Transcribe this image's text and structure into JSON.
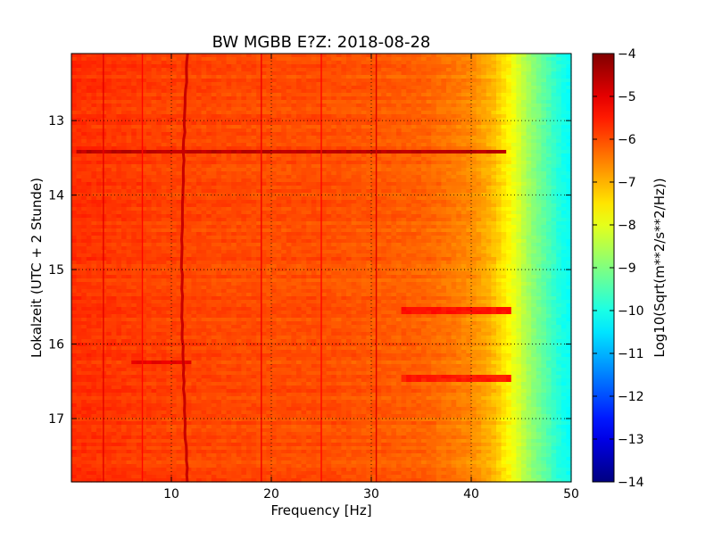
{
  "chart_data": {
    "type": "heatmap",
    "title": "BW MGBB E?Z: 2018-08-28",
    "xlabel": "Frequency [Hz]",
    "ylabel": "Lokalzeit (UTC + 2 Stunde)",
    "colorbar_label": "Log10(Sqrt(m**2/s**2/Hz))",
    "xlim": [
      0,
      50
    ],
    "ylim": [
      12.1,
      17.85
    ],
    "y_inverted": true,
    "clim": [
      -14,
      -4
    ],
    "colormap": "jet",
    "grid": true,
    "x_ticks": [
      10,
      20,
      30,
      40,
      50
    ],
    "x_tick_labels": [
      "10",
      "20",
      "30",
      "40",
      "50"
    ],
    "y_ticks": [
      13,
      14,
      15,
      16,
      17
    ],
    "y_tick_labels": [
      "13",
      "14",
      "15",
      "16",
      "17"
    ],
    "colorbar_ticks": [
      -4,
      -5,
      -6,
      -7,
      -8,
      -9,
      -10,
      -11,
      -12,
      -13,
      -14
    ],
    "colorbar_tick_labels": [
      "−4",
      "−5",
      "−6",
      "−7",
      "−8",
      "−9",
      "−10",
      "−11",
      "−12",
      "−13",
      "−14"
    ],
    "frequency_profile": {
      "frequency_hz": [
        0,
        5,
        10,
        15,
        20,
        25,
        30,
        35,
        38,
        40,
        42,
        43,
        44,
        45,
        46,
        47,
        48,
        49,
        50
      ],
      "log10_amplitude": [
        -5.7,
        -5.8,
        -5.9,
        -5.95,
        -6.0,
        -6.0,
        -6.1,
        -6.2,
        -6.4,
        -6.6,
        -7.0,
        -7.4,
        -7.8,
        -8.3,
        -8.8,
        -9.2,
        -9.6,
        -10.0,
        -10.2
      ]
    },
    "persistent_lines_hz": [
      {
        "frequency": 3.2,
        "log10_amplitude": -5.0
      },
      {
        "frequency": 7.1,
        "log10_amplitude": -5.3
      },
      {
        "frequency": 11.6,
        "log10_amplitude": -4.7
      },
      {
        "frequency": 19.0,
        "log10_amplitude": -5.1
      },
      {
        "frequency": 25.0,
        "log10_amplitude": -5.3
      },
      {
        "frequency": 30.5,
        "log10_amplitude": -4.9
      }
    ],
    "noise_bursts": [
      {
        "time": 13.42,
        "f_min": 0.5,
        "f_max": 43.5,
        "log10_amplitude": -4.6
      },
      {
        "time": 15.55,
        "f_min": 33,
        "f_max": 44,
        "log10_amplitude": -5.4
      },
      {
        "time": 16.25,
        "f_min": 6,
        "f_max": 12,
        "log10_amplitude": -5.0
      },
      {
        "time": 16.45,
        "f_min": 33,
        "f_max": 44,
        "log10_amplitude": -5.5
      }
    ]
  }
}
